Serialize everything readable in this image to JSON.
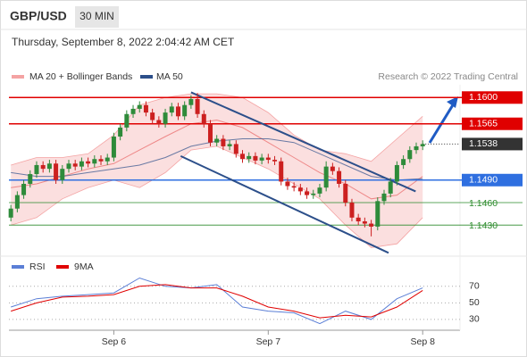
{
  "chart_data": [
    {
      "type": "candlestick",
      "title": "GBP/USD",
      "timeframe": "30 MIN",
      "subtitle": "Thursday, September 8, 2022 2:04:42 AM CET",
      "source": "Research © 2022 Trading Central",
      "up_color": "#2e8b3a",
      "down_color": "#cc2020",
      "x": [
        0,
        1,
        2,
        3,
        4,
        5,
        6,
        7,
        8,
        9,
        10,
        11,
        12,
        13,
        14,
        15,
        16,
        17,
        18,
        19,
        20,
        21,
        22,
        23,
        24,
        25,
        26,
        27,
        28,
        29,
        30,
        31,
        32,
        33,
        34,
        35,
        36,
        37,
        38,
        39,
        40,
        41,
        42,
        43,
        44,
        45,
        46,
        47,
        48,
        49,
        50,
        51,
        52,
        53,
        54,
        55,
        56,
        57,
        58,
        59,
        60,
        61,
        62,
        63,
        64
      ],
      "open": [
        1.144,
        1.1452,
        1.147,
        1.1485,
        1.1498,
        1.151,
        1.1505,
        1.1512,
        1.149,
        1.1505,
        1.1512,
        1.1508,
        1.1515,
        1.1512,
        1.1518,
        1.1515,
        1.152,
        1.1548,
        1.156,
        1.1578,
        1.1585,
        1.159,
        1.158,
        1.157,
        1.1565,
        1.158,
        1.1588,
        1.1575,
        1.159,
        1.1598,
        1.1578,
        1.1565,
        1.154,
        1.1545,
        1.1535,
        1.1538,
        1.1525,
        1.1518,
        1.1522,
        1.1516,
        1.152,
        1.1517,
        1.1515,
        1.1488,
        1.1482,
        1.148,
        1.1475,
        1.147,
        1.1472,
        1.148,
        1.1508,
        1.1502,
        1.1485,
        1.146,
        1.144,
        1.1435,
        1.1432,
        1.1428,
        1.1462,
        1.1472,
        1.1488,
        1.151,
        1.1518,
        1.153,
        1.1535
      ],
      "high": [
        1.1457,
        1.1475,
        1.149,
        1.1503,
        1.1515,
        1.1515,
        1.1517,
        1.1517,
        1.151,
        1.1517,
        1.1517,
        1.152,
        1.152,
        1.1523,
        1.1523,
        1.1525,
        1.1553,
        1.1565,
        1.1583,
        1.159,
        1.1595,
        1.1595,
        1.1585,
        1.1575,
        1.1585,
        1.1593,
        1.1593,
        1.1595,
        1.1603,
        1.1606,
        1.1583,
        1.157,
        1.155,
        1.155,
        1.1543,
        1.1543,
        1.153,
        1.1527,
        1.1527,
        1.1525,
        1.1525,
        1.1522,
        1.152,
        1.1493,
        1.1487,
        1.1485,
        1.148,
        1.1477,
        1.1485,
        1.1515,
        1.1513,
        1.1507,
        1.149,
        1.1465,
        1.1445,
        1.144,
        1.1437,
        1.1467,
        1.1477,
        1.1493,
        1.1515,
        1.1523,
        1.1535,
        1.154,
        1.1543
      ],
      "low": [
        1.1435,
        1.1447,
        1.1465,
        1.148,
        1.1493,
        1.15,
        1.15,
        1.1485,
        1.1485,
        1.15,
        1.1503,
        1.1503,
        1.1507,
        1.1507,
        1.151,
        1.151,
        1.1515,
        1.1543,
        1.1555,
        1.1573,
        1.158,
        1.1575,
        1.1565,
        1.156,
        1.156,
        1.1575,
        1.157,
        1.157,
        1.1585,
        1.1573,
        1.156,
        1.1535,
        1.1535,
        1.153,
        1.153,
        1.152,
        1.1513,
        1.1513,
        1.1511,
        1.1511,
        1.1512,
        1.151,
        1.1483,
        1.1477,
        1.1475,
        1.147,
        1.1465,
        1.1465,
        1.1467,
        1.1475,
        1.1497,
        1.148,
        1.1455,
        1.1435,
        1.143,
        1.1427,
        1.1415,
        1.1423,
        1.1457,
        1.1467,
        1.1483,
        1.1505,
        1.1513,
        1.1525,
        1.153
      ],
      "close": [
        1.1452,
        1.147,
        1.1485,
        1.1498,
        1.151,
        1.1505,
        1.1512,
        1.149,
        1.1505,
        1.1512,
        1.1508,
        1.1515,
        1.1512,
        1.1518,
        1.1515,
        1.152,
        1.1548,
        1.156,
        1.1578,
        1.1585,
        1.159,
        1.158,
        1.157,
        1.1565,
        1.158,
        1.1588,
        1.1575,
        1.159,
        1.1598,
        1.1578,
        1.1565,
        1.154,
        1.1545,
        1.1535,
        1.1538,
        1.1525,
        1.1518,
        1.1522,
        1.1516,
        1.152,
        1.1517,
        1.1515,
        1.1488,
        1.1482,
        1.148,
        1.1475,
        1.147,
        1.1472,
        1.148,
        1.1508,
        1.1502,
        1.1485,
        1.146,
        1.144,
        1.1435,
        1.1432,
        1.1428,
        1.1462,
        1.1472,
        1.1488,
        1.151,
        1.1518,
        1.153,
        1.1535,
        1.1538
      ],
      "xlim": [
        -0.3,
        69.8
      ],
      "ylim": [
        1.1391,
        1.1617
      ],
      "xticks": [
        {
          "value": 16,
          "label": "Sep 6"
        },
        {
          "value": 40,
          "label": "Sep 7"
        },
        {
          "value": 64,
          "label": "Sep 8"
        }
      ],
      "bands": {
        "name": "MA 20 + Bollinger Bands",
        "color": "#f4a3a3",
        "x": [
          0,
          4,
          8,
          12,
          16,
          20,
          24,
          28,
          32,
          36,
          40,
          44,
          48,
          52,
          56,
          60,
          64
        ],
        "middle": [
          1.148,
          1.1485,
          1.1495,
          1.1505,
          1.1512,
          1.153,
          1.1548,
          1.1565,
          1.157,
          1.156,
          1.154,
          1.152,
          1.15,
          1.1485,
          1.1465,
          1.147,
          1.1495
        ],
        "upper": [
          1.151,
          1.152,
          1.152,
          1.1525,
          1.155,
          1.159,
          1.16,
          1.1605,
          1.1605,
          1.16,
          1.158,
          1.155,
          1.153,
          1.1525,
          1.1515,
          1.1545,
          1.1575
        ],
        "lower": [
          1.143,
          1.144,
          1.1465,
          1.148,
          1.149,
          1.148,
          1.15,
          1.153,
          1.1535,
          1.152,
          1.1505,
          1.1485,
          1.1465,
          1.143,
          1.14,
          1.1405,
          1.144
        ]
      },
      "ma50": {
        "name": "MA 50",
        "color": "#2c4f8a",
        "x": [
          0,
          4,
          8,
          12,
          16,
          20,
          24,
          28,
          32,
          36,
          40,
          44,
          48,
          52,
          56,
          60,
          64
        ],
        "values": [
          1.15,
          1.1495,
          1.1495,
          1.15,
          1.1505,
          1.151,
          1.152,
          1.1535,
          1.1542,
          1.1545,
          1.1545,
          1.154,
          1.1525,
          1.151,
          1.1495,
          1.149,
          1.1492
        ]
      },
      "levels": [
        {
          "value": 1.16,
          "label": "1.1600",
          "color": "#e00000",
          "boxed": true
        },
        {
          "value": 1.1565,
          "label": "1.1565",
          "color": "#e00000",
          "boxed": true
        },
        {
          "value": 1.149,
          "label": "1.1490",
          "color": "#2f6fe0",
          "boxed": true
        },
        {
          "value": 1.146,
          "label": "1.1460",
          "color": "#2a8a2a",
          "boxed": false
        },
        {
          "value": 1.143,
          "label": "1.1430",
          "color": "#2a8a2a",
          "boxed": false
        }
      ],
      "last": {
        "value": 1.1538,
        "label": "1.1538",
        "color": "#333333"
      },
      "trendlines": [
        {
          "color": "#2c4f8a",
          "x": [
            28,
            62.9
          ],
          "values": [
            1.1607,
            1.1475
          ]
        },
        {
          "color": "#2c4f8a",
          "x": [
            26.4,
            58.7
          ],
          "values": [
            1.1522,
            1.1393
          ]
        }
      ]
    },
    {
      "type": "line",
      "ylim": [
        17,
        87
      ],
      "yticks": [
        30,
        50,
        70
      ],
      "x": [
        0,
        4,
        8,
        12,
        16,
        20,
        24,
        28,
        32,
        36,
        40,
        44,
        48,
        52,
        56,
        60,
        64
      ],
      "series": [
        {
          "name": "RSI",
          "color": "#5b7fd6",
          "values": [
            45,
            55,
            58,
            60,
            62,
            80,
            70,
            68,
            72,
            45,
            40,
            38,
            25,
            40,
            30,
            55,
            68
          ]
        },
        {
          "name": "9MA",
          "color": "#e00000",
          "values": [
            40,
            50,
            57,
            58,
            60,
            70,
            72,
            68,
            68,
            58,
            45,
            40,
            32,
            35,
            33,
            45,
            65
          ]
        }
      ]
    }
  ]
}
